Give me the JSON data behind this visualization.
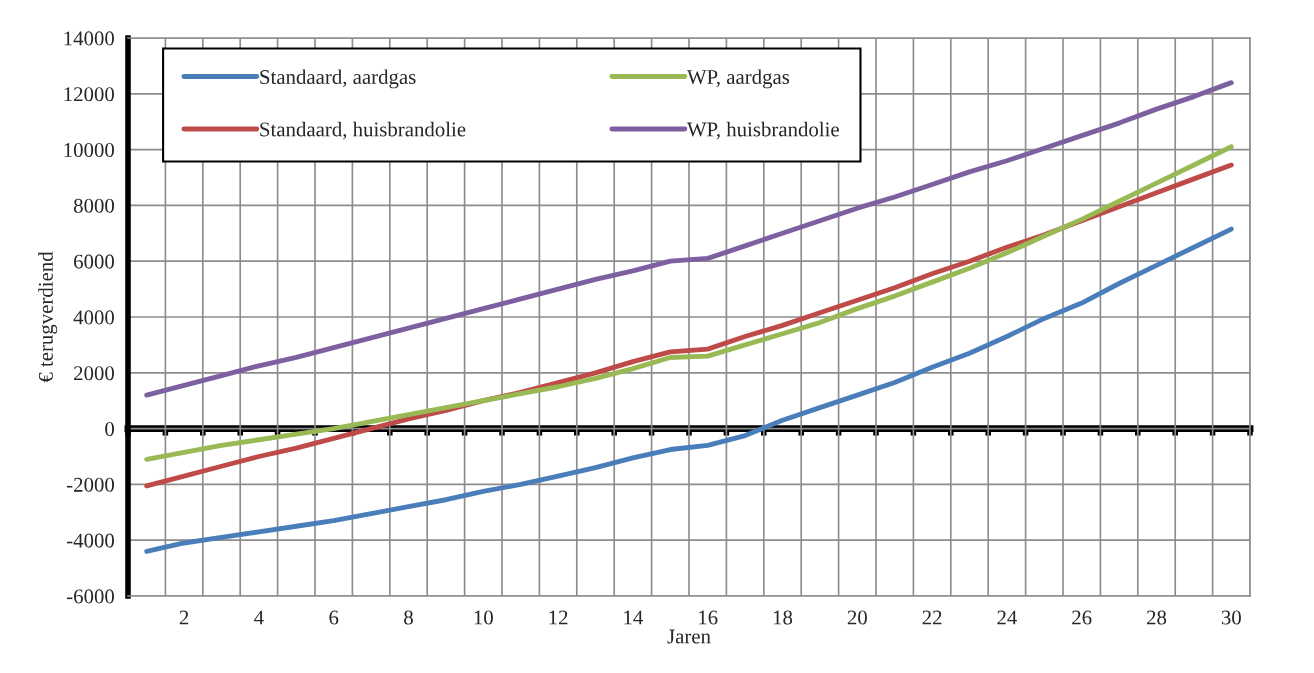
{
  "chart_data": {
    "type": "line",
    "xlabel": "Jaren",
    "ylabel": "€ terugverdiend",
    "categories": [
      null,
      "2",
      null,
      "4",
      null,
      "6",
      null,
      "8",
      null,
      "10",
      null,
      "12",
      null,
      "14",
      null,
      "16",
      null,
      "18",
      null,
      "20",
      null,
      "22",
      null,
      "24",
      null,
      "26",
      null,
      "28",
      null,
      "30"
    ],
    "series": [
      {
        "name": "Standaard, aardgas",
        "color": "#4a7ebb",
        "values": [
          -4400,
          -4100,
          -3900,
          -3700,
          -3500,
          -3300,
          -3050,
          -2800,
          -2550,
          -2250,
          -2000,
          -1700,
          -1400,
          -1050,
          -750,
          -600,
          -250,
          300,
          750,
          1200,
          1650,
          2200,
          2700,
          3300,
          3950,
          4500,
          5200,
          5850,
          6500,
          7150
        ]
      },
      {
        "name": "Standaard, huisbrandolie",
        "color": "#be4b48",
        "values": [
          -2050,
          -1700,
          -1350,
          -1000,
          -700,
          -350,
          0,
          350,
          650,
          1000,
          1300,
          1650,
          2000,
          2400,
          2750,
          2850,
          3300,
          3700,
          4150,
          4600,
          5050,
          5550,
          6000,
          6500,
          6950,
          7450,
          7950,
          8450,
          8950,
          9450
        ]
      },
      {
        "name": "WP, aardgas",
        "color": "#98b954",
        "values": [
          -1100,
          -850,
          -600,
          -400,
          -200,
          0,
          250,
          500,
          750,
          1000,
          1250,
          1500,
          1800,
          2150,
          2550,
          2600,
          3000,
          3400,
          3800,
          4300,
          4750,
          5250,
          5750,
          6300,
          6900,
          7500,
          8150,
          8800,
          9450,
          10100
        ]
      },
      {
        "name": "WP, huisbrandolie",
        "color": "#7d60a0",
        "values": [
          1200,
          1550,
          1900,
          2250,
          2550,
          2900,
          3250,
          3600,
          3950,
          4300,
          4650,
          5000,
          5350,
          5650,
          6000,
          6100,
          6550,
          7000,
          7450,
          7900,
          8300,
          8750,
          9200,
          9600,
          10050,
          10500,
          10950,
          11450,
          11900,
          12400
        ]
      }
    ],
    "ylim": [
      -6000,
      14000
    ],
    "yticks": [
      -6000,
      -4000,
      -2000,
      0,
      2000,
      4000,
      6000,
      8000,
      10000,
      12000,
      14000
    ],
    "grid": true,
    "legend": "top left",
    "marker": "none",
    "line_style": "solid"
  }
}
